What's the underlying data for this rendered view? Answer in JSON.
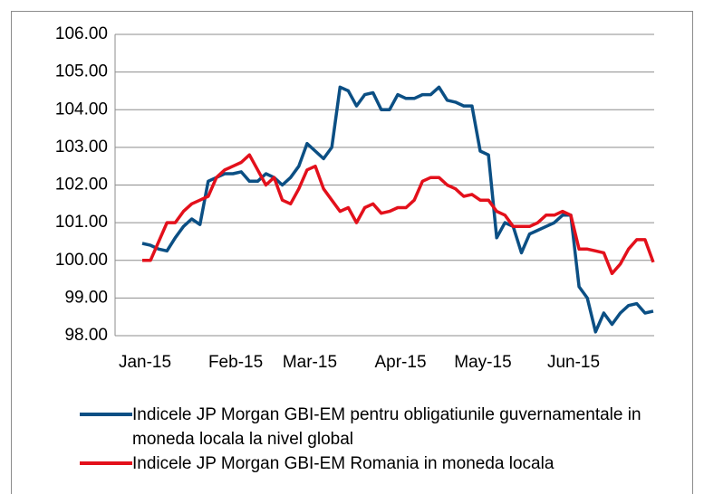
{
  "chart_data": {
    "type": "line",
    "categories": [
      "Jan-15",
      null,
      null,
      null,
      null,
      null,
      null,
      null,
      null,
      null,
      null,
      "Feb-15",
      null,
      null,
      null,
      null,
      null,
      null,
      null,
      null,
      "Mar-15",
      null,
      null,
      null,
      null,
      null,
      null,
      null,
      null,
      null,
      null,
      "Apr-15",
      null,
      null,
      null,
      null,
      null,
      null,
      null,
      null,
      null,
      "May-15",
      null,
      null,
      null,
      null,
      null,
      null,
      null,
      null,
      null,
      null,
      "Jun-15",
      null,
      null,
      null,
      null,
      null,
      null,
      null,
      null,
      null,
      null
    ],
    "series": [
      {
        "name": "Indicele JP Morgan GBI-EM pentru obligatiunile guvernamentale in moneda locala la nivel global",
        "color": "#0b4f84",
        "values": [
          100.45,
          100.4,
          100.3,
          100.25,
          100.6,
          100.9,
          101.1,
          100.95,
          102.1,
          102.2,
          102.3,
          102.3,
          102.35,
          102.1,
          102.1,
          102.3,
          102.2,
          102.0,
          102.2,
          102.5,
          103.1,
          102.9,
          102.7,
          103.0,
          104.6,
          104.5,
          104.1,
          104.4,
          104.45,
          104.0,
          104.0,
          104.4,
          104.3,
          104.3,
          104.4,
          104.4,
          104.6,
          104.25,
          104.2,
          104.1,
          104.1,
          102.9,
          102.8,
          100.6,
          101.0,
          100.9,
          100.2,
          100.7,
          100.8,
          100.9,
          101.0,
          101.2,
          101.2,
          99.3,
          99.0,
          98.1,
          98.6,
          98.3,
          98.6,
          98.8,
          98.85,
          98.6,
          98.65
        ]
      },
      {
        "name": "Indicele JP Morgan GBI-EM Romania in moneda locala",
        "color": "#e3101b",
        "values": [
          100.0,
          100.0,
          100.5,
          101.0,
          101.0,
          101.3,
          101.5,
          101.6,
          101.7,
          102.2,
          102.4,
          102.5,
          102.6,
          102.8,
          102.4,
          102.0,
          102.2,
          101.6,
          101.5,
          101.9,
          102.4,
          102.5,
          101.9,
          101.6,
          101.3,
          101.4,
          101.0,
          101.4,
          101.5,
          101.25,
          101.3,
          101.4,
          101.4,
          101.6,
          102.1,
          102.2,
          102.2,
          102.0,
          101.9,
          101.7,
          101.75,
          101.6,
          101.6,
          101.3,
          101.2,
          100.9,
          100.9,
          100.9,
          101.0,
          101.2,
          101.2,
          101.3,
          101.2,
          100.3,
          100.3,
          100.25,
          100.2,
          99.65,
          99.9,
          100.3,
          100.55,
          100.55,
          99.95
        ]
      }
    ],
    "ylim": [
      98,
      106
    ],
    "yticks": [
      {
        "value": 98,
        "label": "98.00"
      },
      {
        "value": 99,
        "label": "99.00"
      },
      {
        "value": 100,
        "label": "100.00"
      },
      {
        "value": 101,
        "label": "101.00"
      },
      {
        "value": 102,
        "label": "102.00"
      },
      {
        "value": 103,
        "label": "103.00"
      },
      {
        "value": 104,
        "label": "104.00"
      },
      {
        "value": 105,
        "label": "105.00"
      },
      {
        "value": 106,
        "label": "106.00"
      }
    ],
    "grid": true,
    "legend": "bottom"
  }
}
